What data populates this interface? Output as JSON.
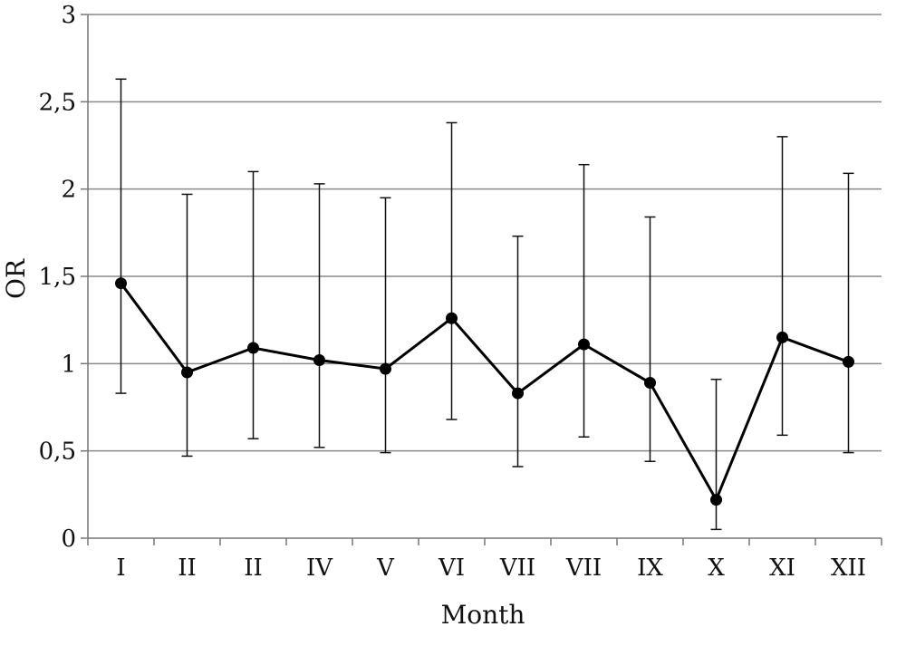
{
  "chart_data": {
    "type": "line",
    "xlabel": "Month",
    "ylabel": "OR",
    "categories": [
      "I",
      "II",
      "II",
      "IV",
      "V",
      "VI",
      "VII",
      "VII",
      "IX",
      "X",
      "XI",
      "XII"
    ],
    "ylim": [
      0,
      3
    ],
    "yticks": [
      0,
      0.5,
      1,
      1.5,
      2,
      2.5,
      3
    ],
    "ytick_labels": [
      "0",
      "0,5",
      "1",
      "1,5",
      "2",
      "2,5",
      "3"
    ],
    "grid": "horizontal",
    "series": [
      {
        "values": [
          1.46,
          0.95,
          1.09,
          1.02,
          0.97,
          1.26,
          0.83,
          1.11,
          0.89,
          0.22,
          1.15,
          1.01
        ],
        "lower": [
          0.83,
          0.47,
          0.57,
          0.52,
          0.49,
          0.68,
          0.41,
          0.58,
          0.44,
          0.05,
          0.59,
          0.49
        ],
        "upper": [
          2.63,
          1.97,
          2.1,
          2.03,
          1.95,
          2.38,
          1.73,
          2.14,
          1.84,
          0.91,
          2.3,
          2.09
        ]
      }
    ],
    "colors": {
      "series": "#000000",
      "grid": "#8a8a8a"
    }
  }
}
